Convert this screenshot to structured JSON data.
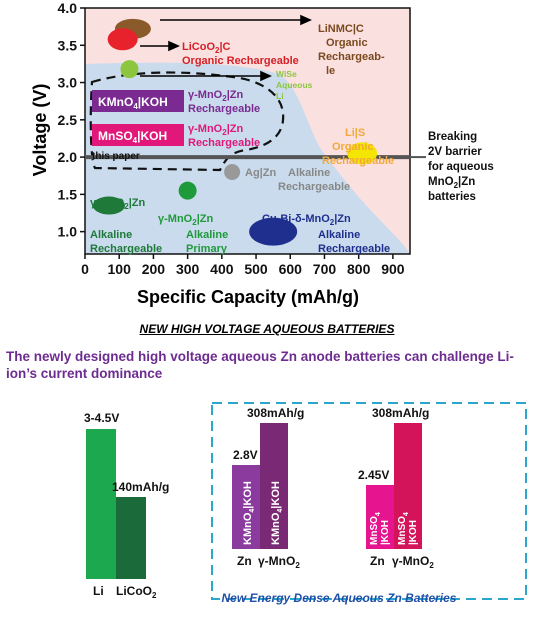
{
  "chart_data": {
    "type": "scatter",
    "xlabel": "Specific Capacity (mAh/g)",
    "ylabel": "Voltage (V)",
    "xlim": [
      0,
      950
    ],
    "ylim": [
      0.7,
      4.0
    ],
    "xticks": [
      0,
      100,
      200,
      300,
      400,
      500,
      600,
      700,
      800,
      900
    ],
    "yticks": [
      1.0,
      1.5,
      2.0,
      2.5,
      3.0,
      3.5,
      4.0
    ],
    "threshold": {
      "y": 2.0,
      "label": "Breaking 2V barrier for aqueous MnO2|Zn batteries"
    },
    "points": [
      {
        "x": 140,
        "y": 3.72,
        "color": "#8b5a2b",
        "label": "LiNMC|C Organic Rechargeable"
      },
      {
        "x": 110,
        "y": 3.58,
        "color": "#e8222d",
        "label": "LiCoO2|C Organic Rechargeable"
      },
      {
        "x": 130,
        "y": 3.18,
        "color": "#8cc63f",
        "label": "WiSe Aqueous Li"
      },
      {
        "x": 810,
        "y": 2.05,
        "color": "#f4e600",
        "label": "Li|S Organic Rechargeable"
      },
      {
        "x": 430,
        "y": 1.8,
        "color": "#999999",
        "label": "Ag|Zn Alkaline Rechargeable"
      },
      {
        "x": 70,
        "y": 1.35,
        "color": "#1f7a3a",
        "label": "γ-MnO2|Zn Alkaline Rechargeable"
      },
      {
        "x": 300,
        "y": 1.55,
        "color": "#1f9a3a",
        "label": "γ-MnO2|Zn Alkaline Primary"
      },
      {
        "x": 550,
        "y": 1.0,
        "color": "#1e2f8e",
        "label": "Cu-Bi-δ-MnO2|Zn Alkaline Rechargeable"
      }
    ],
    "boxes": [
      {
        "label": "KMnO4|KOH",
        "text": "γ-MnO2|Zn Rechargeable",
        "color": "#7a2a90"
      },
      {
        "label": "MnSO4|KOH",
        "text": "γ-MnO2|Zn Rechargeable",
        "color": "#e1187a"
      }
    ],
    "annotation": "this paper"
  },
  "lower": {
    "title": "NEW HIGH VOLTAGE AQUEOUS BATTERIES",
    "subtitle": "The newly designed high voltage aqueous Zn anode batteries can challenge Li-ion’s current dominance",
    "li_group": {
      "voltage": "3-4.5V",
      "capacity": "140mAh/g",
      "labels": [
        "Li",
        "LiCoO2"
      ]
    },
    "kmno4_group": {
      "voltage": "2.8V",
      "capacity": "308mAh/g",
      "bar_text": "KMnO4|KOH",
      "labels": [
        "Zn",
        "γ-MnO2"
      ]
    },
    "mnso4_group": {
      "voltage": "2.45V",
      "capacity": "308mAh/g",
      "bar_text": "MnSO4|KOH",
      "labels": [
        "Zn",
        "γ-MnO2"
      ]
    },
    "box_caption": "New Energy Dense Aqueous Zn Batteries"
  }
}
